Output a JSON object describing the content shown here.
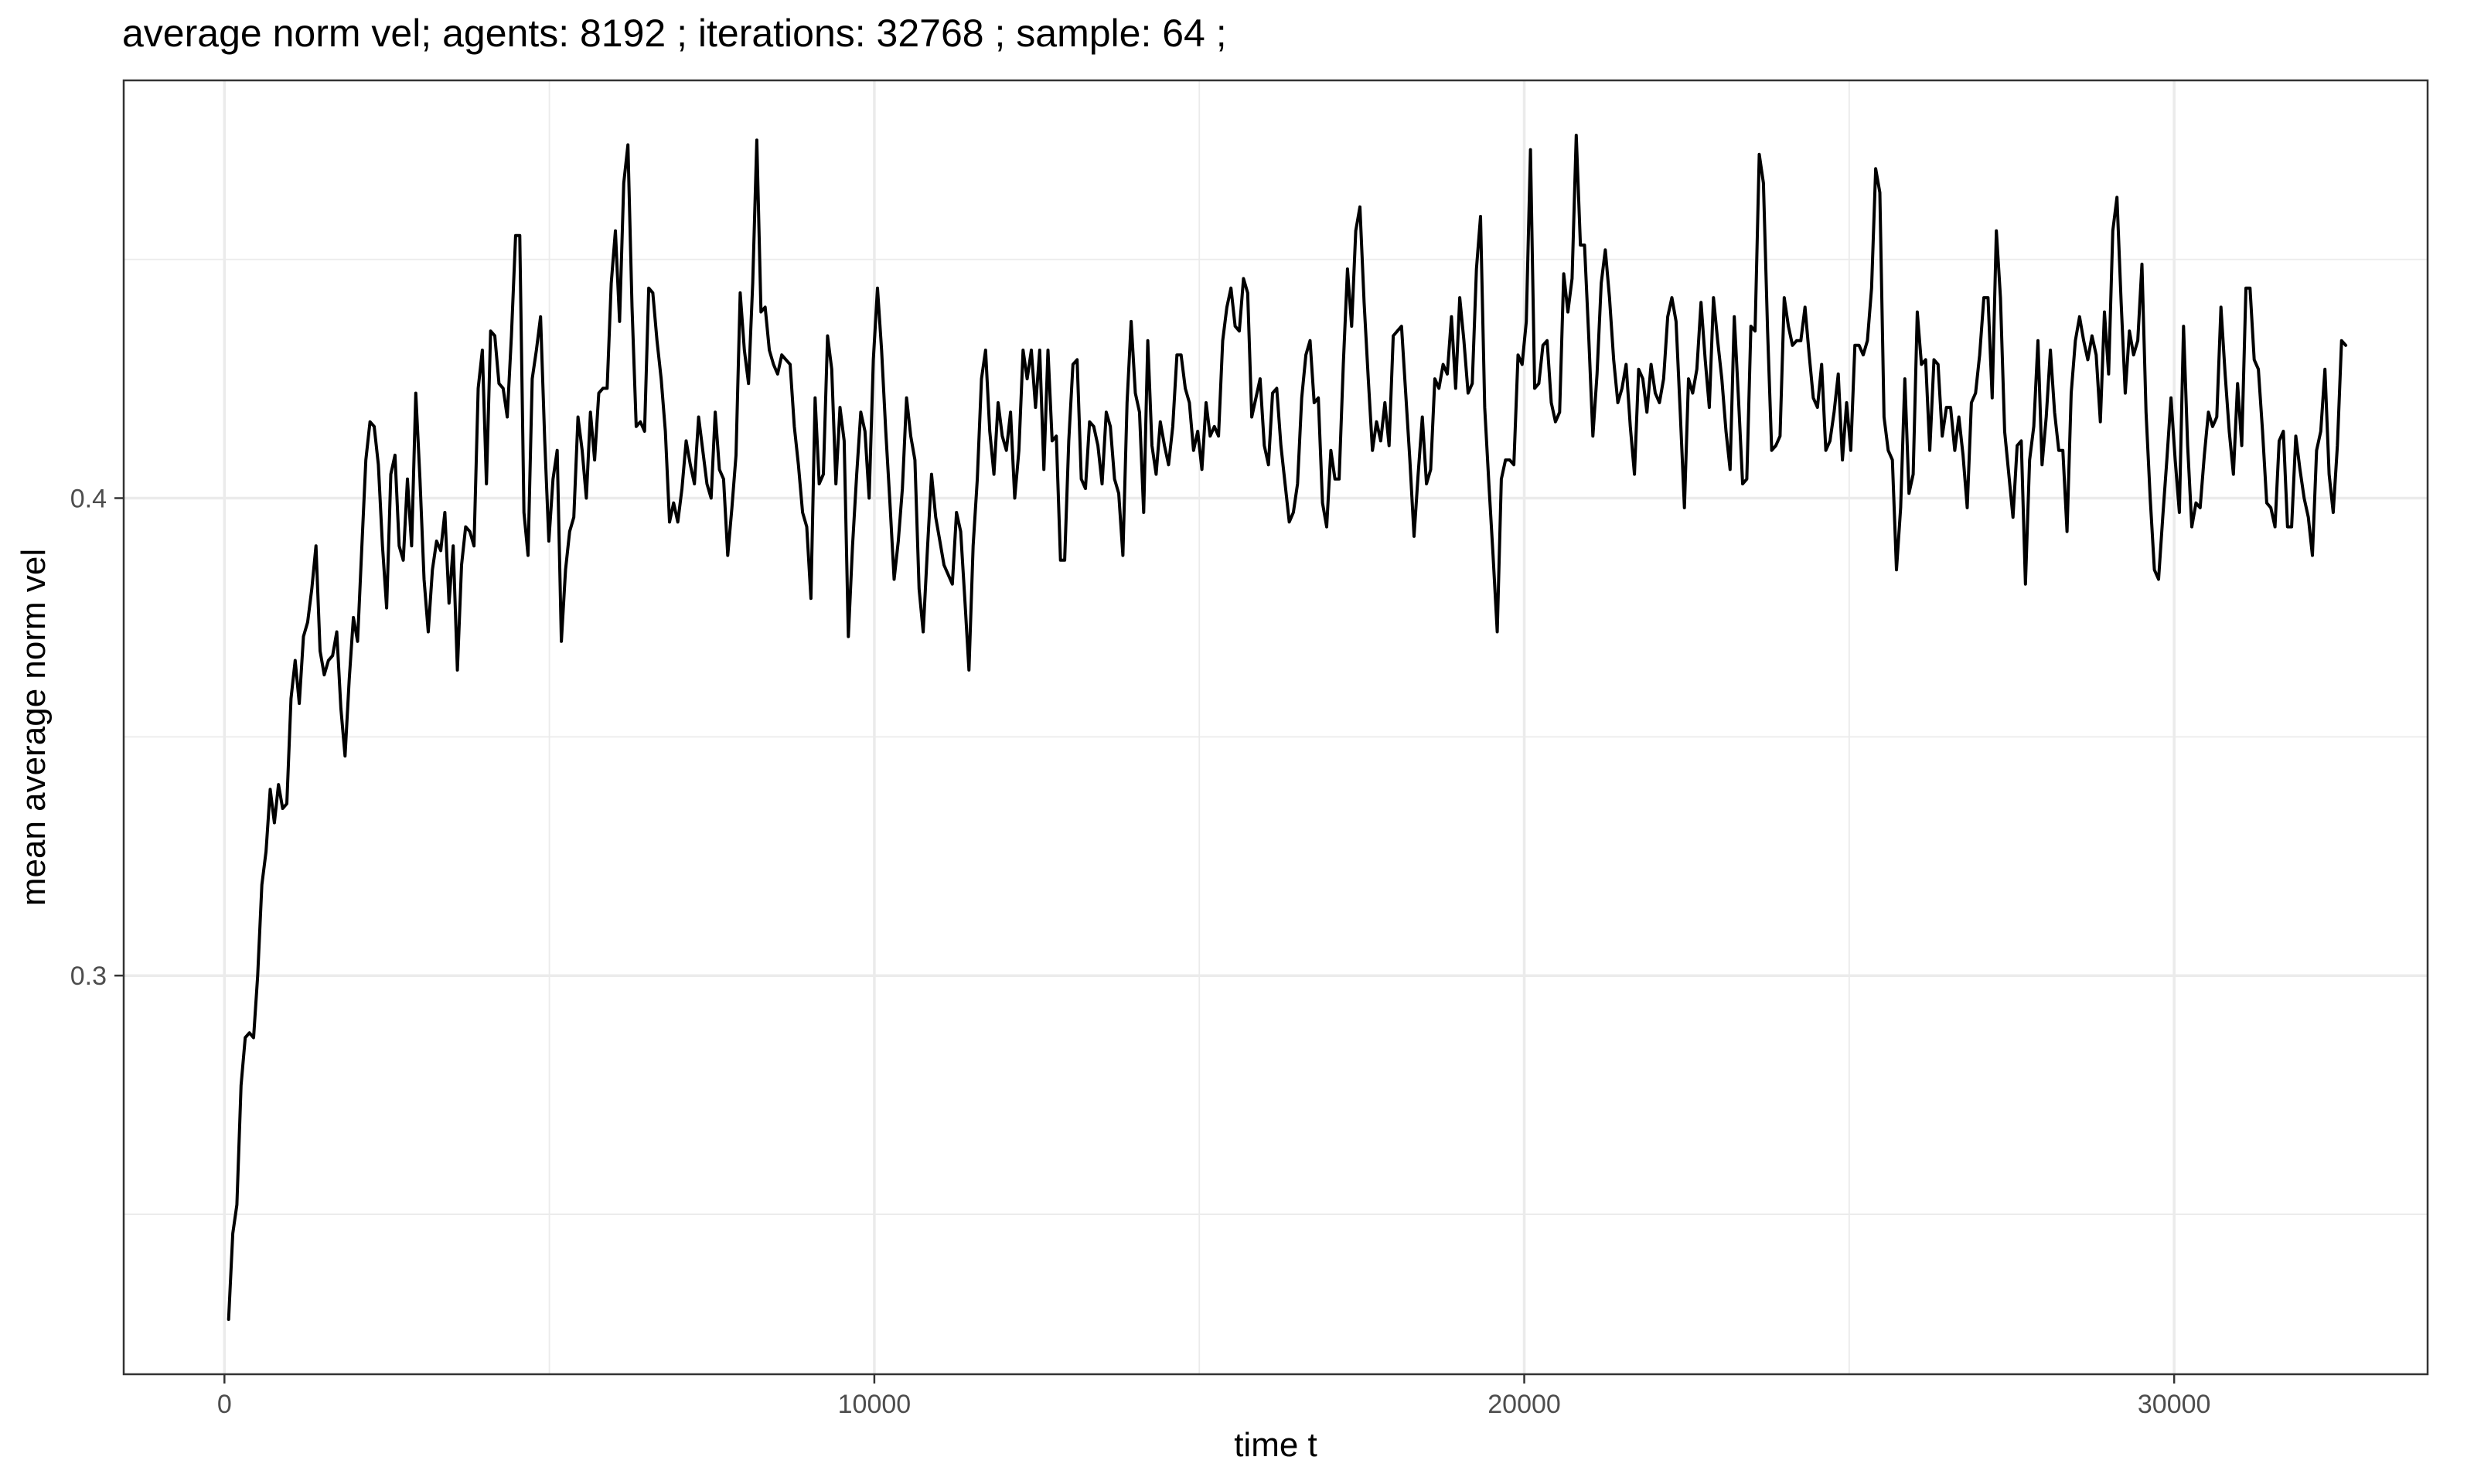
{
  "chart_data": {
    "type": "line",
    "title": "average norm vel; agents: 8192 ; iterations: 32768 ; sample: 64 ;",
    "xlabel": "time t",
    "ylabel": "mean average norm vel",
    "xlim": [
      -1550,
      33900
    ],
    "ylim": [
      0.2165,
      0.4875
    ],
    "x_ticks": [
      0,
      10000,
      20000,
      30000
    ],
    "x_tick_labels": [
      "0",
      "10000",
      "20000",
      "30000"
    ],
    "y_ticks": [
      0.3,
      0.4
    ],
    "y_tick_labels": [
      "0.3",
      "0.4"
    ],
    "x_minor_gridlines": [
      5000,
      15000,
      25000
    ],
    "y_minor_gridlines": [
      0.25,
      0.35,
      0.45
    ],
    "grid": true,
    "legend": "none",
    "series_color": "#000000",
    "x_step": 64,
    "x_start": 64,
    "values": [
      0.228,
      0.246,
      0.252,
      0.277,
      0.287,
      0.288,
      0.287,
      0.3,
      0.319,
      0.326,
      0.339,
      0.332,
      0.34,
      0.335,
      0.336,
      0.358,
      0.366,
      0.357,
      0.371,
      0.374,
      0.381,
      0.39,
      0.368,
      0.363,
      0.366,
      0.367,
      0.372,
      0.356,
      0.346,
      0.362,
      0.375,
      0.37,
      0.389,
      0.408,
      0.416,
      0.415,
      0.407,
      0.39,
      0.377,
      0.405,
      0.409,
      0.39,
      0.387,
      0.404,
      0.39,
      0.422,
      0.404,
      0.383,
      0.372,
      0.385,
      0.391,
      0.389,
      0.397,
      0.378,
      0.39,
      0.364,
      0.386,
      0.394,
      0.393,
      0.39,
      0.423,
      0.431,
      0.403,
      0.435,
      0.434,
      0.424,
      0.423,
      0.417,
      0.434,
      0.455,
      0.455,
      0.397,
      0.388,
      0.425,
      0.431,
      0.438,
      0.412,
      0.391,
      0.404,
      0.41,
      0.37,
      0.385,
      0.393,
      0.396,
      0.417,
      0.41,
      0.4,
      0.418,
      0.408,
      0.422,
      0.423,
      0.423,
      0.445,
      0.456,
      0.437,
      0.466,
      0.474,
      0.44,
      0.415,
      0.416,
      0.414,
      0.444,
      0.443,
      0.433,
      0.425,
      0.414,
      0.395,
      0.399,
      0.395,
      0.402,
      0.412,
      0.407,
      0.403,
      0.417,
      0.41,
      0.403,
      0.4,
      0.418,
      0.406,
      0.404,
      0.388,
      0.398,
      0.409,
      0.443,
      0.431,
      0.424,
      0.445,
      0.475,
      0.439,
      0.44,
      0.431,
      0.428,
      0.426,
      0.43,
      0.429,
      0.428,
      0.415,
      0.407,
      0.397,
      0.394,
      0.379,
      0.421,
      0.403,
      0.405,
      0.434,
      0.427,
      0.403,
      0.419,
      0.412,
      0.371,
      0.39,
      0.405,
      0.418,
      0.414,
      0.4,
      0.429,
      0.444,
      0.431,
      0.414,
      0.399,
      0.383,
      0.391,
      0.402,
      0.421,
      0.413,
      0.408,
      0.381,
      0.372,
      0.389,
      0.405,
      0.396,
      0.391,
      0.386,
      0.384,
      0.382,
      0.397,
      0.393,
      0.379,
      0.364,
      0.39,
      0.404,
      0.425,
      0.431,
      0.414,
      0.405,
      0.42,
      0.413,
      0.41,
      0.418,
      0.4,
      0.41,
      0.431,
      0.425,
      0.431,
      0.419,
      0.431,
      0.406,
      0.431,
      0.412,
      0.413,
      0.387,
      0.387,
      0.412,
      0.428,
      0.429,
      0.404,
      0.402,
      0.416,
      0.415,
      0.411,
      0.403,
      0.418,
      0.415,
      0.404,
      0.401,
      0.388,
      0.42,
      0.437,
      0.422,
      0.418,
      0.397,
      0.433,
      0.411,
      0.405,
      0.416,
      0.411,
      0.407,
      0.415,
      0.43,
      0.43,
      0.423,
      0.42,
      0.41,
      0.414,
      0.406,
      0.42,
      0.413,
      0.415,
      0.413,
      0.433,
      0.44,
      0.444,
      0.436,
      0.435,
      0.446,
      0.443,
      0.417,
      0.421,
      0.425,
      0.411,
      0.407,
      0.422,
      0.423,
      0.411,
      0.403,
      0.395,
      0.397,
      0.403,
      0.421,
      0.43,
      0.433,
      0.42,
      0.421,
      0.399,
      0.394,
      0.41,
      0.404,
      0.404,
      0.428,
      0.448,
      0.436,
      0.456,
      0.461,
      0.441,
      0.425,
      0.41,
      0.416,
      0.412,
      0.42,
      0.411,
      0.434,
      0.435,
      0.436,
      0.422,
      0.408,
      0.392,
      0.405,
      0.417,
      0.403,
      0.406,
      0.425,
      0.423,
      0.428,
      0.426,
      0.438,
      0.423,
      0.442,
      0.433,
      0.422,
      0.424,
      0.448,
      0.459,
      0.419,
      0.403,
      0.388,
      0.372,
      0.404,
      0.408,
      0.408,
      0.407,
      0.43,
      0.428,
      0.437,
      0.473,
      0.423,
      0.424,
      0.432,
      0.433,
      0.42,
      0.416,
      0.418,
      0.447,
      0.439,
      0.446,
      0.476,
      0.453,
      0.453,
      0.434,
      0.413,
      0.426,
      0.445,
      0.452,
      0.442,
      0.429,
      0.42,
      0.423,
      0.428,
      0.415,
      0.405,
      0.427,
      0.425,
      0.418,
      0.428,
      0.422,
      0.42,
      0.425,
      0.438,
      0.442,
      0.437,
      0.418,
      0.398,
      0.425,
      0.422,
      0.427,
      0.441,
      0.429,
      0.419,
      0.442,
      0.433,
      0.425,
      0.414,
      0.406,
      0.438,
      0.421,
      0.403,
      0.404,
      0.436,
      0.435,
      0.472,
      0.466,
      0.435,
      0.41,
      0.411,
      0.413,
      0.442,
      0.436,
      0.432,
      0.433,
      0.433,
      0.44,
      0.43,
      0.421,
      0.419,
      0.428,
      0.41,
      0.412,
      0.418,
      0.426,
      0.408,
      0.42,
      0.41,
      0.432,
      0.432,
      0.43,
      0.433,
      0.444,
      0.469,
      0.464,
      0.417,
      0.41,
      0.408,
      0.385,
      0.398,
      0.425,
      0.401,
      0.405,
      0.439,
      0.428,
      0.429,
      0.41,
      0.429,
      0.428,
      0.413,
      0.419,
      0.419,
      0.41,
      0.417,
      0.409,
      0.398,
      0.42,
      0.422,
      0.43,
      0.442,
      0.442,
      0.421,
      0.456,
      0.442,
      0.414,
      0.405,
      0.396,
      0.411,
      0.412,
      0.382,
      0.408,
      0.415,
      0.433,
      0.407,
      0.417,
      0.431,
      0.418,
      0.41,
      0.41,
      0.393,
      0.422,
      0.433,
      0.438,
      0.433,
      0.429,
      0.434,
      0.43,
      0.416,
      0.439,
      0.426,
      0.456,
      0.463,
      0.441,
      0.422,
      0.435,
      0.43,
      0.433,
      0.449,
      0.418,
      0.4,
      0.385,
      0.383,
      0.396,
      0.408,
      0.421,
      0.408,
      0.397,
      0.436,
      0.411,
      0.394,
      0.399,
      0.398,
      0.409,
      0.418,
      0.415,
      0.417,
      0.44,
      0.426,
      0.414,
      0.405,
      0.424,
      0.411,
      0.444,
      0.444,
      0.429,
      0.427,
      0.414,
      0.399,
      0.398,
      0.394,
      0.412,
      0.414,
      0.394,
      0.394,
      0.413,
      0.406,
      0.4,
      0.396,
      0.388,
      0.41,
      0.414,
      0.427,
      0.405,
      0.397,
      0.411,
      0.433,
      0.432
    ]
  }
}
